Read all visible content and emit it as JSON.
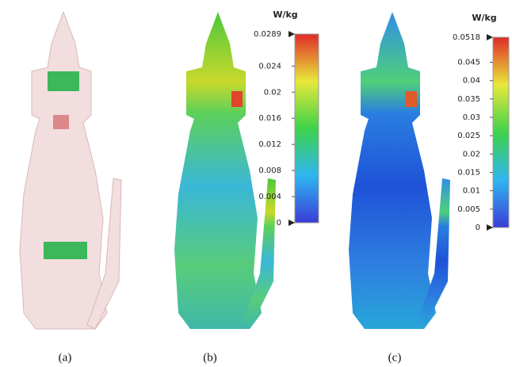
{
  "panels": [
    {
      "label": "(a)"
    },
    {
      "label": "(b)"
    },
    {
      "label": "(c)"
    }
  ],
  "colorbars": [
    {
      "unit": "W/kg",
      "max": 0.0289,
      "ticks": [
        0,
        0.004,
        0.008,
        0.012,
        0.016,
        0.02,
        0.024
      ]
    },
    {
      "unit": "W/kg",
      "max": 0.0518,
      "ticks": [
        0,
        0.005,
        0.01,
        0.015,
        0.02,
        0.025,
        0.03,
        0.035,
        0.04,
        0.045
      ]
    }
  ]
}
